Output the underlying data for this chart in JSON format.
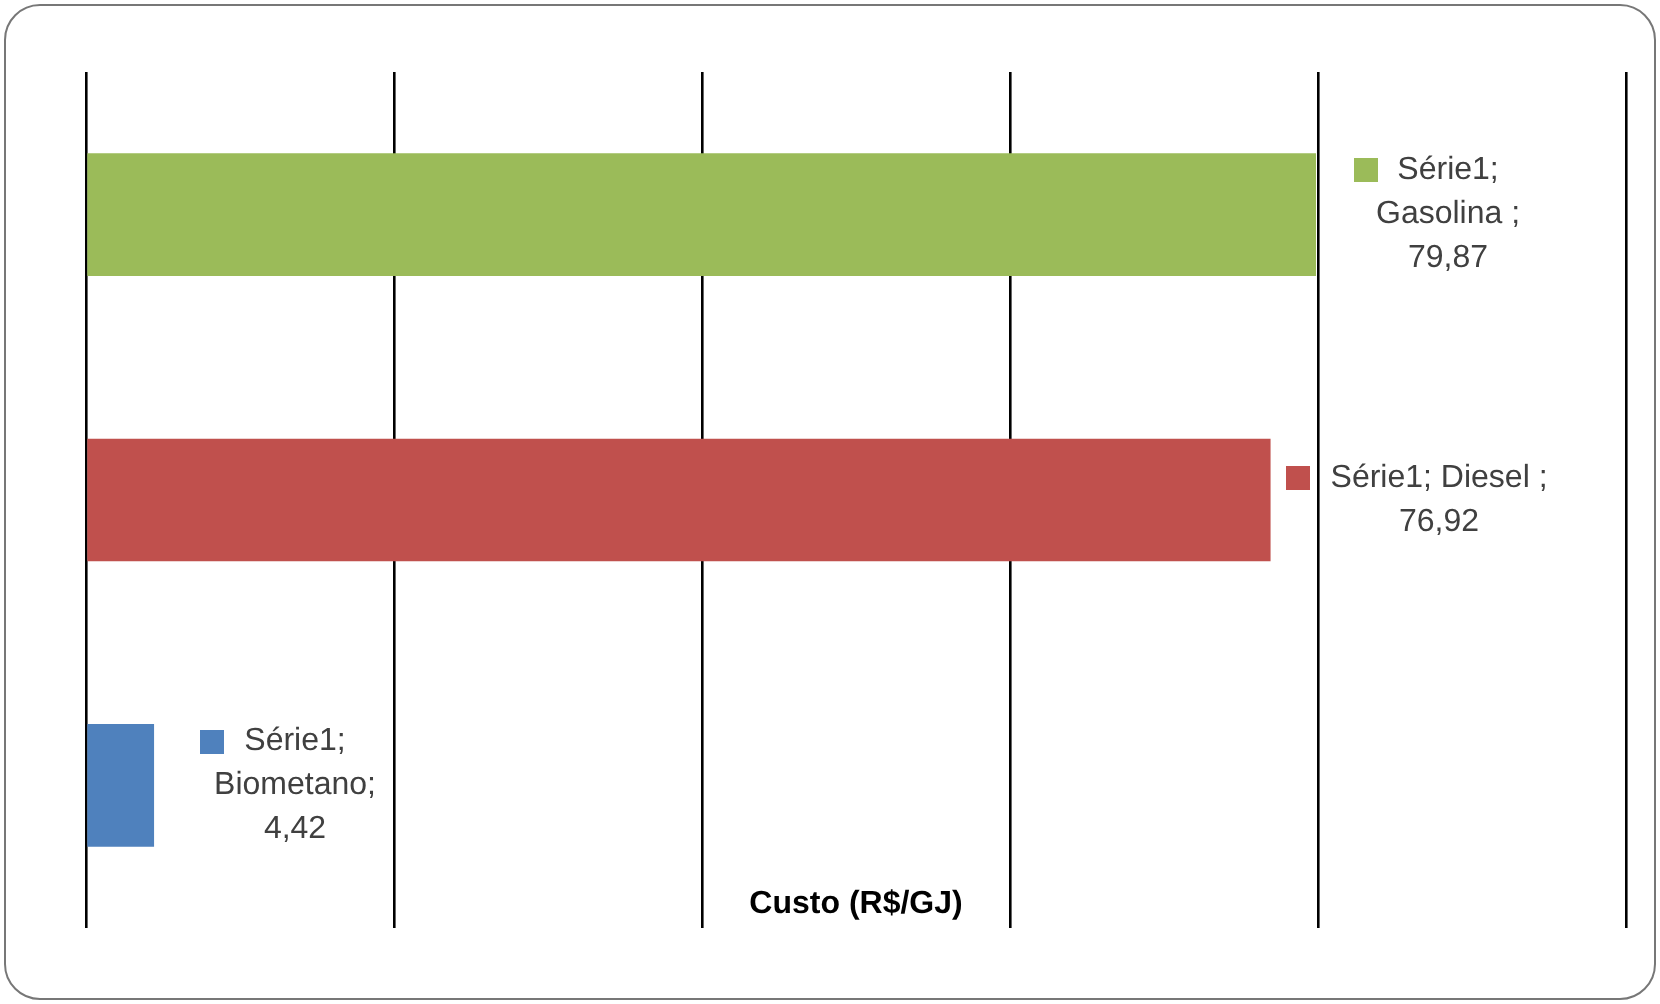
{
  "chart_data": {
    "type": "bar",
    "orientation": "horizontal",
    "xlabel": "Custo (R$/GJ)",
    "categories": [
      null,
      null,
      null
    ],
    "values": [
      79.87,
      76.92,
      4.42
    ],
    "colors": [
      "#9bbb59",
      "#c0504d",
      "#4f81bd"
    ],
    "value_labels": [
      "Série1; Gasolina ; 79,87",
      "Série1; Diesel ; 76,92",
      "Série1; Biometano; 4,42"
    ],
    "xlim": [
      0,
      100
    ],
    "xticks": [
      {
        "value": 0,
        "label": null
      },
      {
        "value": 20,
        "label": null
      },
      {
        "value": 40,
        "label": null
      },
      {
        "value": 60,
        "label": null
      },
      {
        "value": 80,
        "label": null
      },
      {
        "value": 100,
        "label": null
      }
    ],
    "tick_labels": false,
    "grid": "x",
    "legend": false
  }
}
